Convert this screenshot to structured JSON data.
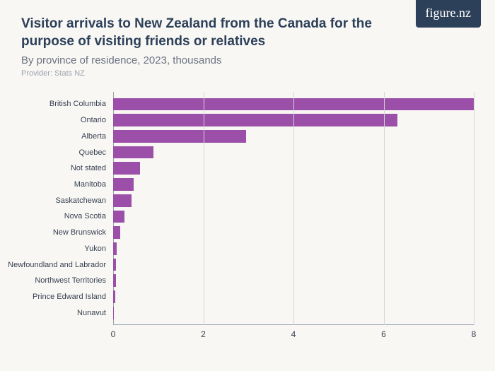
{
  "logo": {
    "text": "figure.nz"
  },
  "header": {
    "title": "Visitor arrivals to New Zealand from the Canada for the purpose of visiting friends or relatives",
    "subtitle": "By province of residence, 2023, thousands",
    "provider": "Provider: Stats NZ"
  },
  "chart": {
    "type": "bar-horizontal",
    "xlim": [
      0,
      8
    ],
    "xticks": [
      0,
      2,
      4,
      6,
      8
    ],
    "bar_color": "#9b4fa8",
    "grid_color": "#d1d5db",
    "axis_color": "#9ca3af",
    "background_color": "#f8f7f4",
    "title_fontsize": 19,
    "subtitle_fontsize": 15,
    "provider_fontsize": 11,
    "label_fontsize": 11,
    "tick_fontsize": 12,
    "categories": [
      "British Columbia",
      "Ontario",
      "Alberta",
      "Quebec",
      "Not stated",
      "Manitoba",
      "Saskatchewan",
      "Nova Scotia",
      "New Brunswick",
      "Yukon",
      "Newfoundland and Labrador",
      "Northwest Territories",
      "Prince Edward Island",
      "Nunavut"
    ],
    "values": [
      8.0,
      6.3,
      2.95,
      0.9,
      0.6,
      0.45,
      0.4,
      0.25,
      0.15,
      0.08,
      0.07,
      0.06,
      0.04,
      0.02
    ]
  }
}
